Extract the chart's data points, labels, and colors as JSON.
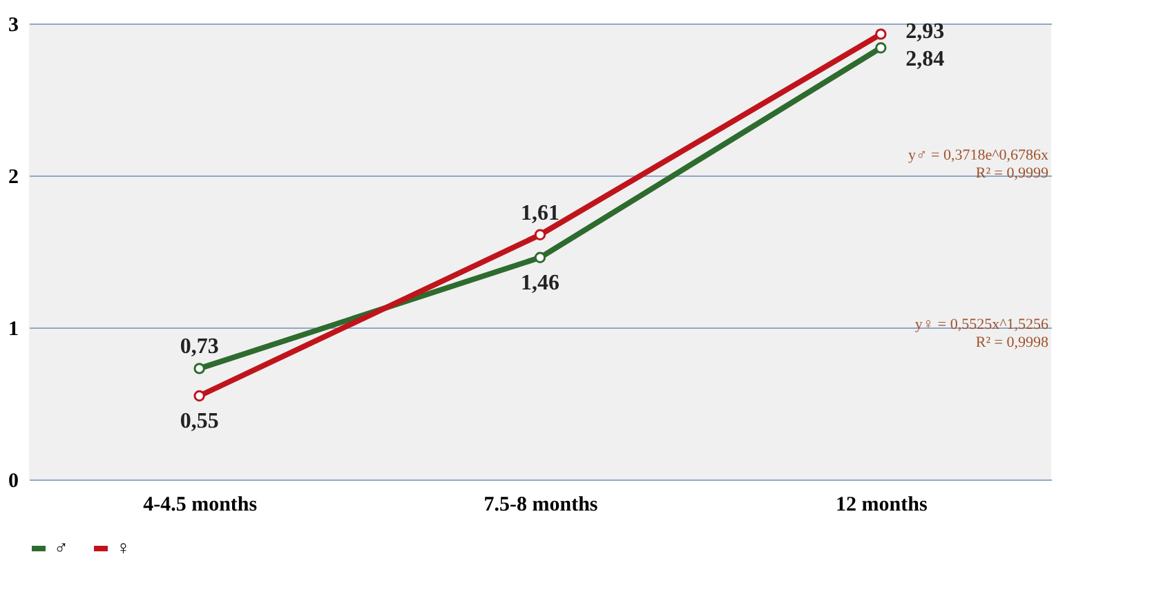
{
  "chart_data": {
    "type": "line",
    "categories": [
      "4-4.5 months",
      "7.5-8 months",
      "12 months"
    ],
    "series": [
      {
        "name": "♂",
        "color": "#2e6b2e",
        "values": [
          0.73,
          1.46,
          2.84
        ],
        "value_labels": [
          "0,73",
          "1,46",
          "2,84"
        ]
      },
      {
        "name": "♀",
        "color": "#c0141c",
        "values": [
          0.55,
          1.61,
          2.93
        ],
        "value_labels": [
          "0,55",
          "1,61",
          "2,93"
        ]
      }
    ],
    "ylim": [
      0,
      3
    ],
    "yticks": [
      0,
      1,
      2,
      3
    ],
    "grid": "y",
    "legend": "bottom",
    "marker": "circle",
    "line_style": "solid",
    "annotations": [
      "y♂ = 0,3718e^0,6786x\nR² = 0,9999",
      "y♀ = 0,5525x^1,5256\nR² = 0,9998"
    ]
  }
}
